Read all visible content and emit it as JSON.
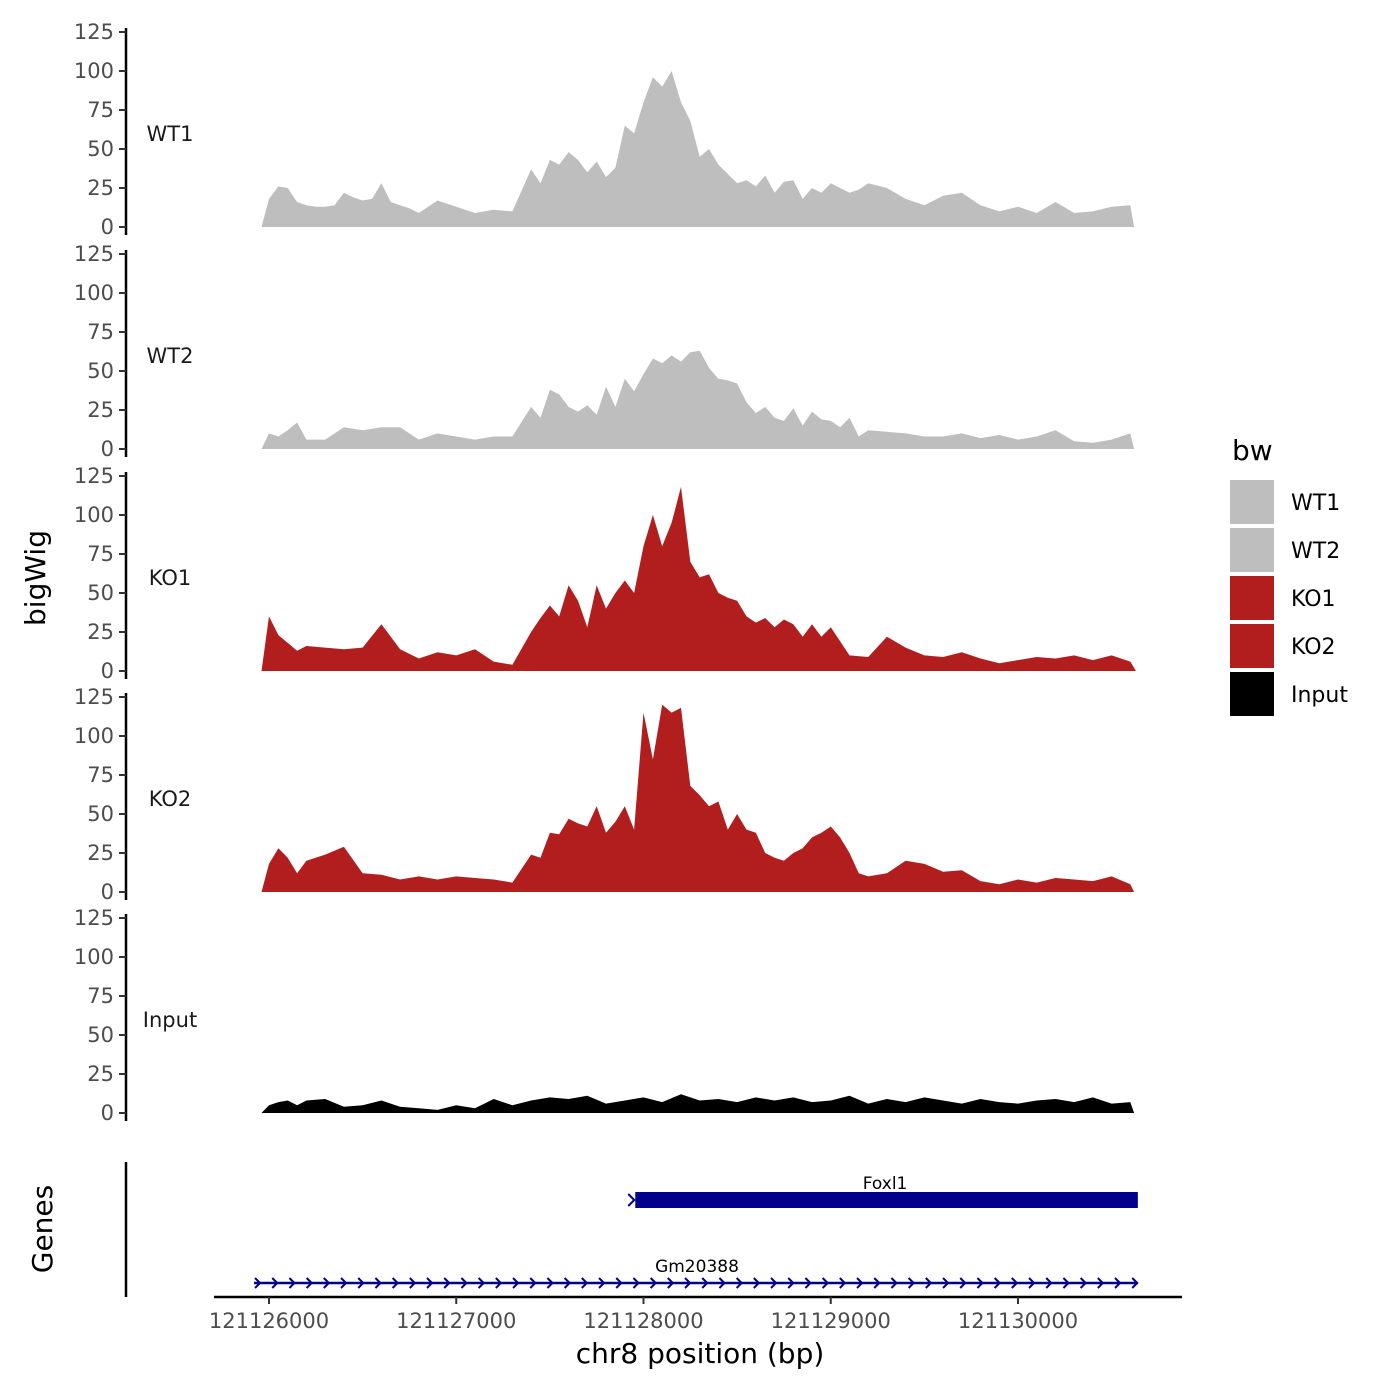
{
  "chart_data": {
    "type": "area",
    "ylabel": "bigWig",
    "xlabel": "chr8 position (bp)",
    "ylim": [
      0,
      125
    ],
    "xlim": [
      121125700,
      121130900
    ],
    "y_ticks": [
      "0",
      "25",
      "50",
      "75",
      "100",
      "125"
    ],
    "x_ticks": [
      {
        "value": 121126000,
        "label": "121126000"
      },
      {
        "value": 121127000,
        "label": "121127000"
      },
      {
        "value": 121128000,
        "label": "121128000"
      },
      {
        "value": 121129000,
        "label": "121129000"
      },
      {
        "value": 121130000,
        "label": "121130000"
      }
    ],
    "legend": {
      "title": "bw",
      "placement": "right",
      "entries": [
        {
          "label": "WT1",
          "color": "#bebebe"
        },
        {
          "label": "WT2",
          "color": "#bebebe"
        },
        {
          "label": "KO1",
          "color": "#b21e1e"
        },
        {
          "label": "KO2",
          "color": "#b21e1e"
        },
        {
          "label": "Input",
          "color": "#000000"
        }
      ]
    },
    "series": [
      {
        "name": "WT1",
        "color": "#bebebe",
        "x": [
          121125960,
          121126000,
          121126050,
          121126100,
          121126150,
          121126200,
          121126250,
          121126300,
          121126350,
          121126400,
          121126450,
          121126500,
          121126550,
          121126600,
          121126650,
          121126700,
          121126750,
          121126800,
          121126900,
          121127000,
          121127100,
          121127200,
          121127300,
          121127400,
          121127450,
          121127500,
          121127550,
          121127600,
          121127650,
          121127700,
          121127750,
          121127800,
          121127850,
          121127900,
          121127950,
          121128000,
          121128050,
          121128100,
          121128150,
          121128200,
          121128250,
          121128300,
          121128350,
          121128400,
          121128450,
          121128500,
          121128550,
          121128600,
          121128650,
          121128700,
          121128750,
          121128800,
          121128850,
          121128900,
          121128950,
          121129000,
          121129050,
          121129100,
          121129150,
          121129200,
          121129300,
          121129400,
          121129500,
          121129600,
          121129700,
          121129800,
          121129900,
          121130000,
          121130100,
          121130200,
          121130300,
          121130400,
          121130500,
          121130600,
          121130620
        ],
        "y": [
          0,
          18,
          26,
          25,
          16,
          14,
          13,
          13,
          14,
          22,
          19,
          17,
          18,
          28,
          16,
          14,
          12,
          9,
          17,
          13,
          9,
          11,
          10,
          37,
          28,
          43,
          40,
          48,
          43,
          35,
          42,
          32,
          38,
          65,
          60,
          80,
          96,
          90,
          100,
          80,
          68,
          45,
          50,
          40,
          34,
          28,
          30,
          26,
          33,
          22,
          29,
          30,
          18,
          25,
          22,
          28,
          25,
          22,
          24,
          28,
          25,
          18,
          14,
          20,
          22,
          14,
          10,
          13,
          9,
          16,
          9,
          10,
          13,
          14,
          0
        ]
      },
      {
        "name": "WT2",
        "color": "#bebebe",
        "x": [
          121125960,
          121126000,
          121126050,
          121126100,
          121126150,
          121126200,
          121126300,
          121126400,
          121126500,
          121126600,
          121126700,
          121126800,
          121126900,
          121127000,
          121127100,
          121127200,
          121127300,
          121127400,
          121127450,
          121127500,
          121127550,
          121127600,
          121127650,
          121127700,
          121127750,
          121127800,
          121127850,
          121127900,
          121127950,
          121128000,
          121128050,
          121128100,
          121128150,
          121128200,
          121128250,
          121128300,
          121128350,
          121128400,
          121128450,
          121128500,
          121128550,
          121128600,
          121128650,
          121128700,
          121128750,
          121128800,
          121128850,
          121128900,
          121128950,
          121129000,
          121129050,
          121129100,
          121129150,
          121129200,
          121129300,
          121129400,
          121129500,
          121129600,
          121129700,
          121129800,
          121129900,
          121130000,
          121130100,
          121130200,
          121130300,
          121130400,
          121130500,
          121130600,
          121130620
        ],
        "y": [
          0,
          10,
          8,
          12,
          17,
          6,
          6,
          14,
          12,
          14,
          14,
          6,
          10,
          8,
          6,
          8,
          8,
          27,
          20,
          38,
          35,
          27,
          24,
          28,
          22,
          40,
          27,
          45,
          37,
          48,
          58,
          55,
          60,
          56,
          62,
          63,
          52,
          45,
          44,
          42,
          30,
          23,
          27,
          20,
          18,
          26,
          15,
          24,
          19,
          18,
          14,
          20,
          8,
          12,
          11,
          10,
          8,
          8,
          10,
          7,
          9,
          6,
          8,
          12,
          5,
          4,
          6,
          10,
          0
        ]
      },
      {
        "name": "KO1",
        "color": "#b21e1e",
        "x": [
          121125960,
          121126000,
          121126050,
          121126100,
          121126150,
          121126200,
          121126300,
          121126400,
          121126500,
          121126600,
          121126700,
          121126800,
          121126900,
          121127000,
          121127100,
          121127200,
          121127300,
          121127400,
          121127450,
          121127500,
          121127550,
          121127600,
          121127650,
          121127700,
          121127750,
          121127800,
          121127850,
          121127900,
          121127950,
          121128000,
          121128050,
          121128100,
          121128150,
          121128200,
          121128250,
          121128300,
          121128350,
          121128400,
          121128450,
          121128500,
          121128550,
          121128600,
          121128650,
          121128700,
          121128750,
          121128800,
          121128850,
          121128900,
          121128950,
          121129000,
          121129100,
          121129200,
          121129300,
          121129400,
          121129500,
          121129600,
          121129700,
          121129800,
          121129900,
          121130000,
          121130100,
          121130200,
          121130300,
          121130400,
          121130500,
          121130600,
          121130630
        ],
        "y": [
          0,
          35,
          23,
          18,
          13,
          16,
          15,
          14,
          15,
          30,
          14,
          8,
          12,
          10,
          14,
          6,
          4,
          25,
          34,
          42,
          35,
          55,
          45,
          28,
          55,
          40,
          50,
          58,
          50,
          80,
          100,
          80,
          95,
          118,
          70,
          60,
          62,
          50,
          47,
          45,
          35,
          31,
          34,
          28,
          33,
          30,
          22,
          30,
          22,
          28,
          10,
          9,
          22,
          15,
          10,
          9,
          12,
          8,
          5,
          7,
          9,
          8,
          10,
          7,
          10,
          6,
          0
        ]
      },
      {
        "name": "KO2",
        "color": "#b21e1e",
        "x": [
          121125960,
          121126000,
          121126050,
          121126100,
          121126150,
          121126200,
          121126300,
          121126400,
          121126500,
          121126600,
          121126700,
          121126800,
          121126900,
          121127000,
          121127100,
          121127200,
          121127300,
          121127400,
          121127450,
          121127500,
          121127550,
          121127600,
          121127650,
          121127700,
          121127750,
          121127800,
          121127850,
          121127900,
          121127950,
          121128000,
          121128050,
          121128100,
          121128150,
          121128200,
          121128250,
          121128300,
          121128350,
          121128400,
          121128450,
          121128500,
          121128550,
          121128600,
          121128650,
          121128700,
          121128750,
          121128800,
          121128850,
          121128900,
          121128950,
          121129000,
          121129050,
          121129100,
          121129150,
          121129200,
          121129300,
          121129400,
          121129500,
          121129600,
          121129700,
          121129800,
          121129900,
          121130000,
          121130100,
          121130200,
          121130300,
          121130400,
          121130500,
          121130600,
          121130620
        ],
        "y": [
          0,
          18,
          28,
          22,
          12,
          20,
          24,
          29,
          12,
          11,
          8,
          10,
          8,
          10,
          9,
          8,
          6,
          24,
          22,
          38,
          37,
          47,
          44,
          42,
          55,
          38,
          45,
          55,
          40,
          115,
          85,
          120,
          115,
          118,
          68,
          62,
          55,
          58,
          40,
          50,
          40,
          38,
          25,
          22,
          20,
          25,
          28,
          35,
          38,
          42,
          35,
          25,
          12,
          10,
          12,
          20,
          18,
          13,
          14,
          7,
          5,
          8,
          6,
          9,
          8,
          7,
          10,
          5,
          0
        ]
      },
      {
        "name": "Input",
        "color": "#000000",
        "x": [
          121125960,
          121126000,
          121126050,
          121126100,
          121126150,
          121126200,
          121126300,
          121126400,
          121126500,
          121126600,
          121126700,
          121126800,
          121126900,
          121127000,
          121127100,
          121127200,
          121127300,
          121127400,
          121127500,
          121127600,
          121127700,
          121127800,
          121127900,
          121128000,
          121128100,
          121128200,
          121128300,
          121128400,
          121128500,
          121128600,
          121128700,
          121128800,
          121128900,
          121129000,
          121129100,
          121129200,
          121129300,
          121129400,
          121129500,
          121129600,
          121129700,
          121129800,
          121129900,
          121130000,
          121130100,
          121130200,
          121130300,
          121130400,
          121130500,
          121130600,
          121130620
        ],
        "y": [
          0,
          5,
          7,
          8,
          5,
          8,
          9,
          4,
          5,
          8,
          4,
          3,
          2,
          5,
          3,
          9,
          5,
          8,
          10,
          9,
          11,
          6,
          8,
          10,
          7,
          12,
          8,
          9,
          7,
          10,
          8,
          10,
          7,
          8,
          11,
          6,
          9,
          7,
          10,
          8,
          6,
          9,
          7,
          6,
          8,
          9,
          7,
          10,
          6,
          7,
          0
        ]
      }
    ],
    "genes_track": {
      "label": "Genes",
      "genes": [
        {
          "name": "Foxl1",
          "start": 121127940,
          "end": 121130640,
          "strand": "+",
          "style": "exon"
        },
        {
          "name": "Gm20388",
          "start": 121125920,
          "end": 121130640,
          "strand": "+",
          "style": "intron"
        }
      ],
      "color": "#00008b"
    }
  }
}
